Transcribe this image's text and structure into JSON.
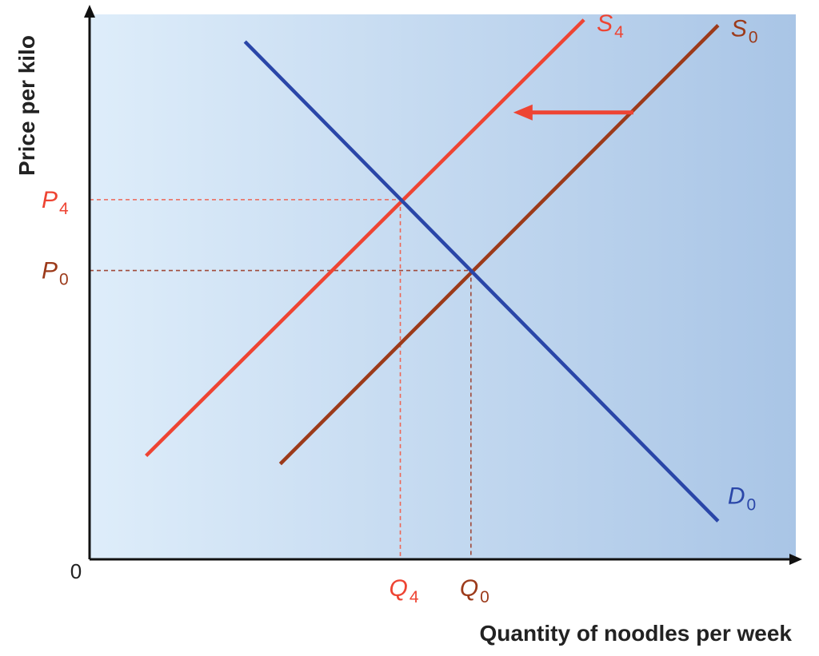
{
  "chart_data": {
    "type": "line",
    "title": "",
    "xlabel": "Quantity of noodles per week",
    "ylabel": "Price per kilo",
    "origin_label": "0",
    "xlim": [
      0,
      10
    ],
    "ylim": [
      0,
      10
    ],
    "grid": false,
    "legend": "none",
    "series": [
      {
        "name": "S4",
        "label": "S",
        "sub": "4",
        "color": "#ee4433",
        "points": [
          [
            0.8,
            1.9
          ],
          [
            7.0,
            9.9
          ]
        ]
      },
      {
        "name": "S0",
        "label": "S",
        "sub": "0",
        "color": "#9c3a1a",
        "points": [
          [
            2.7,
            1.75
          ],
          [
            8.9,
            9.8
          ]
        ]
      },
      {
        "name": "D0",
        "label": "D",
        "sub": "0",
        "color": "#2a46a8",
        "points": [
          [
            2.2,
            9.5
          ],
          [
            8.9,
            0.7
          ]
        ]
      }
    ],
    "equilibria": [
      {
        "series": "S4",
        "x": 4.4,
        "y": 6.6,
        "x_label": "Q",
        "x_sub": "4",
        "y_label": "P",
        "y_sub": "4",
        "color": "#ee4433",
        "guide_color": "#ee6655"
      },
      {
        "series": "S0",
        "x": 5.4,
        "y": 5.3,
        "x_label": "Q",
        "x_sub": "0",
        "y_label": "P",
        "y_sub": "0",
        "color": "#9c3a1a",
        "guide_color": "#a04a3a"
      }
    ],
    "shift_arrow": {
      "direction": "left",
      "from": [
        7.7,
        8.2
      ],
      "to": [
        6.0,
        8.2
      ],
      "color": "#ee4433"
    }
  }
}
